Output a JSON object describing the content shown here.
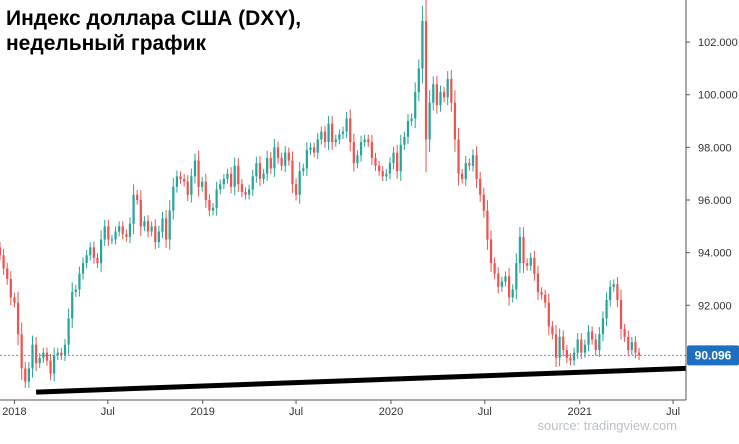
{
  "title": "Индекс доллара США (DXY), недельный график",
  "source": "source: tradingview.com",
  "colors": {
    "up": "#26a69a",
    "down": "#ef5350",
    "trendline": "#000000",
    "price_label_bg": "#1e6fc2",
    "axis": "#555555",
    "price_line": "#5b8fd6"
  },
  "chart_data": {
    "type": "candlestick",
    "timeframe": "weekly",
    "title": "Индекс доллара США (DXY), недельный график",
    "last_price": "90.096",
    "last_price_value": 90.096,
    "ylim": [
      88.4,
      103.6
    ],
    "y_ticks": [
      92,
      94,
      96,
      98,
      100,
      102
    ],
    "y_tick_labels": [
      "92.000",
      "94.000",
      "96.000",
      "98.000",
      "100.000",
      "102.000"
    ],
    "x_range": [
      "2017-12-04",
      "2021-07-26"
    ],
    "x_ticks": [
      {
        "date": "2018-01-01",
        "label": "2018"
      },
      {
        "date": "2018-07-01",
        "label": "Jul"
      },
      {
        "date": "2019-01-01",
        "label": "2019"
      },
      {
        "date": "2019-07-01",
        "label": "Jul"
      },
      {
        "date": "2020-01-01",
        "label": "2020"
      },
      {
        "date": "2020-07-01",
        "label": "Jul"
      },
      {
        "date": "2021-01-01",
        "label": "2021"
      },
      {
        "date": "2021-07-01",
        "label": "Jul"
      }
    ],
    "trendline": {
      "start": {
        "date": "2018-02-12",
        "value": 88.7
      },
      "end": {
        "date": "2021-07-26",
        "value": 89.6
      }
    },
    "start_date": "2017-12-04",
    "closes": [
      93.9,
      93.4,
      93.0,
      92.3,
      92.1,
      90.9,
      89.6,
      89.1,
      89.6,
      90.5,
      89.8,
      90.0,
      90.2,
      89.9,
      89.4,
      90.1,
      90.2,
      90.1,
      90.5,
      91.5,
      92.5,
      92.6,
      93.2,
      93.6,
      93.9,
      94.2,
      93.8,
      93.6,
      94.5,
      95.0,
      94.5,
      94.5,
      94.8,
      95.0,
      94.7,
      94.6,
      95.1,
      96.2,
      96.0,
      95.0,
      95.2,
      94.8,
      95.0,
      94.4,
      94.8,
      95.3,
      94.5,
      95.6,
      96.5,
      96.9,
      96.8,
      96.7,
      96.2,
      96.9,
      97.5,
      96.5,
      96.7,
      96.0,
      95.6,
      95.7,
      96.4,
      96.6,
      96.8,
      97.0,
      96.5,
      97.3,
      96.6,
      96.3,
      96.2,
      96.4,
      96.9,
      97.4,
      96.8,
      97.0,
      97.6,
      97.2,
      98.0,
      97.6,
      97.3,
      97.8,
      97.5,
      96.6,
      96.2,
      97.1,
      97.2,
      97.9,
      98.0,
      97.8,
      98.3,
      98.6,
      98.2,
      98.9,
      98.2,
      98.3,
      98.5,
      98.6,
      99.1,
      98.2,
      97.4,
      97.7,
      98.2,
      98.3,
      98.2,
      97.6,
      97.3,
      97.1,
      96.9,
      97.0,
      97.4,
      97.8,
      97.1,
      98.1,
      98.4,
      99.0,
      99.1,
      100.1,
      101.0,
      102.8,
      98.3,
      99.7,
      100.4,
      99.6,
      100.1,
      99.9,
      100.6,
      99.7,
      98.3,
      97.0,
      96.8,
      97.4,
      97.3,
      97.7,
      96.8,
      96.2,
      95.6,
      94.5,
      93.6,
      93.2,
      92.7,
      92.9,
      93.1,
      92.3,
      92.6,
      93.6,
      94.6,
      93.6,
      93.5,
      93.8,
      93.2,
      92.5,
      92.4,
      92.1,
      91.2,
      90.9,
      90.0,
      90.8,
      90.3,
      90.0,
      89.9,
      90.2,
      90.7,
      90.2,
      90.5,
      91.0,
      90.7,
      90.3,
      90.9,
      91.5,
      92.2,
      92.7,
      92.8,
      92.2,
      91.1,
      90.8,
      90.3,
      90.6,
      90.2,
      90.1
    ]
  }
}
